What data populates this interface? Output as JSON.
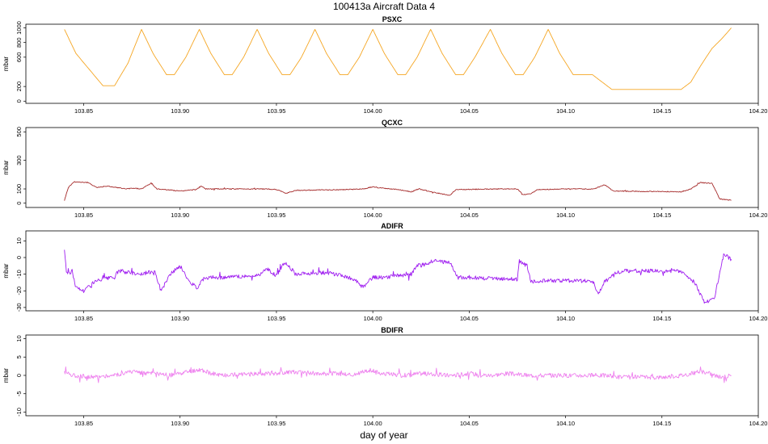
{
  "page_title": "100413a   Aircraft Data 4",
  "xlabel": "day of year",
  "chart_data": [
    {
      "type": "line",
      "title": "PSXC",
      "ylabel": "mbar",
      "color": "#f5a623",
      "xlim": [
        103.82,
        104.2
      ],
      "ylim": [
        -30,
        1050
      ],
      "yticks": [
        0,
        200,
        600,
        800,
        1000
      ],
      "ytick_labels": [
        "0",
        "200",
        "600",
        "800",
        "1000"
      ],
      "xticks": [
        103.85,
        103.9,
        103.95,
        104.0,
        104.05,
        104.1,
        104.15,
        104.2
      ],
      "xtick_labels": [
        "103.85",
        "103.90",
        "103.95",
        "104.00",
        "104.05",
        "104.10",
        "104.15",
        "104.20"
      ],
      "noise": 0,
      "x": [
        103.84,
        103.846,
        103.86,
        103.866,
        103.873,
        103.88,
        103.886,
        103.893,
        103.897,
        103.903,
        103.91,
        103.916,
        103.923,
        103.927,
        103.933,
        103.94,
        103.946,
        103.953,
        103.957,
        103.963,
        103.97,
        103.976,
        103.983,
        103.987,
        103.993,
        104.0,
        104.006,
        104.013,
        104.017,
        104.023,
        104.03,
        104.036,
        104.043,
        104.047,
        104.053,
        104.061,
        104.067,
        104.074,
        104.078,
        104.084,
        104.091,
        104.097,
        104.104,
        104.114,
        104.12,
        104.124,
        104.16,
        104.165,
        104.17,
        104.176,
        104.181,
        104.186
      ],
      "y": [
        980,
        650,
        210,
        210,
        520,
        980,
        650,
        360,
        360,
        600,
        980,
        650,
        360,
        360,
        600,
        980,
        650,
        360,
        360,
        600,
        980,
        650,
        360,
        360,
        600,
        980,
        650,
        360,
        360,
        600,
        980,
        650,
        360,
        360,
        600,
        980,
        650,
        360,
        360,
        600,
        980,
        650,
        360,
        360,
        240,
        160,
        160,
        260,
        480,
        720,
        850,
        1000
      ]
    },
    {
      "type": "line",
      "title": "QCXC",
      "ylabel": "mbar",
      "color": "#a52a2a",
      "xlim": [
        103.82,
        104.2
      ],
      "ylim": [
        -30,
        530
      ],
      "yticks": [
        0,
        100,
        300,
        500
      ],
      "ytick_labels": [
        "0",
        "100",
        "300",
        "500"
      ],
      "xticks": [
        103.85,
        103.9,
        103.95,
        104.0,
        104.05,
        104.1,
        104.15,
        104.2
      ],
      "xtick_labels": [
        "103.85",
        "103.90",
        "103.95",
        "104.00",
        "104.05",
        "104.10",
        "104.15",
        "104.20"
      ],
      "noise": 3,
      "x": [
        103.84,
        103.842,
        103.845,
        103.852,
        103.857,
        103.862,
        103.872,
        103.876,
        103.88,
        103.885,
        103.888,
        103.893,
        103.9,
        103.908,
        103.911,
        103.913,
        103.92,
        103.945,
        103.95,
        103.955,
        103.96,
        103.985,
        103.995,
        104.0,
        104.005,
        104.013,
        104.02,
        104.024,
        104.03,
        104.038,
        104.04,
        104.043,
        104.063,
        104.075,
        104.078,
        104.082,
        104.085,
        104.1,
        104.115,
        104.12,
        104.125,
        104.16,
        104.165,
        104.17,
        104.176,
        104.18,
        104.186
      ],
      "y": [
        20,
        110,
        150,
        145,
        110,
        120,
        100,
        105,
        100,
        140,
        100,
        95,
        85,
        95,
        120,
        100,
        100,
        100,
        95,
        70,
        90,
        95,
        100,
        115,
        105,
        95,
        80,
        100,
        80,
        60,
        55,
        95,
        100,
        100,
        60,
        65,
        95,
        100,
        100,
        130,
        85,
        80,
        100,
        145,
        140,
        30,
        20
      ]
    },
    {
      "type": "line",
      "title": "ADIFR",
      "ylabel": "mbar",
      "color": "#a020f0",
      "xlim": [
        103.82,
        104.2
      ],
      "ylim": [
        -32,
        16
      ],
      "yticks": [
        -30,
        -20,
        -10,
        0,
        10
      ],
      "ytick_labels": [
        "-30",
        "-20",
        "-10",
        "0",
        "10"
      ],
      "xticks": [
        103.85,
        103.9,
        103.95,
        104.0,
        104.05,
        104.1,
        104.15,
        104.2
      ],
      "xtick_labels": [
        "103.85",
        "103.90",
        "103.95",
        "104.00",
        "104.05",
        "104.10",
        "104.15",
        "104.20"
      ],
      "noise": 1.2,
      "x": [
        103.84,
        103.841,
        103.842,
        103.844,
        103.846,
        103.85,
        103.855,
        103.86,
        103.866,
        103.868,
        103.88,
        103.887,
        103.89,
        103.895,
        103.9,
        103.905,
        103.909,
        103.911,
        103.913,
        103.92,
        103.94,
        103.945,
        103.95,
        103.953,
        103.955,
        103.96,
        103.975,
        103.985,
        103.99,
        103.995,
        104.0,
        104.005,
        104.02,
        104.023,
        104.028,
        104.03,
        104.04,
        104.044,
        104.05,
        104.075,
        104.076,
        104.08,
        104.082,
        104.105,
        104.114,
        104.117,
        104.12,
        104.125,
        104.13,
        104.155,
        104.16,
        104.167,
        104.172,
        104.177,
        104.18,
        104.182,
        104.186
      ],
      "y": [
        5,
        -8,
        -10,
        -8,
        -18,
        -20,
        -15,
        -13,
        -12,
        -8,
        -10,
        -8,
        -20,
        -10,
        -5,
        -15,
        -18,
        -14,
        -12,
        -12,
        -11,
        -7,
        -11,
        -5,
        -3,
        -10,
        -9,
        -11,
        -13,
        -18,
        -12,
        -12,
        -10,
        -5,
        -4,
        -2,
        -3,
        -12,
        -12,
        -13,
        -2,
        -5,
        -14,
        -14,
        -14,
        -22,
        -15,
        -10,
        -8,
        -8,
        -8,
        -15,
        -27,
        -25,
        -10,
        2,
        -1
      ]
    },
    {
      "type": "line",
      "title": "BDIFR",
      "ylabel": "mbar",
      "color": "#ee82ee",
      "xlim": [
        103.82,
        104.2
      ],
      "ylim": [
        -11,
        11
      ],
      "yticks": [
        -10,
        -5,
        0,
        5,
        10
      ],
      "ytick_labels": [
        "-10",
        "-5",
        "0",
        "5",
        "10"
      ],
      "xticks": [
        103.85,
        103.9,
        103.95,
        104.0,
        104.05,
        104.1,
        104.15,
        104.2
      ],
      "xtick_labels": [
        "103.85",
        "103.90",
        "103.95",
        "104.00",
        "104.05",
        "104.10",
        "104.15",
        "104.20"
      ],
      "noise": 0.6,
      "x": [
        103.84,
        103.845,
        103.855,
        103.865,
        103.875,
        103.885,
        103.895,
        103.905,
        103.91,
        103.92,
        103.935,
        103.95,
        103.96,
        103.97,
        103.98,
        103.99,
        103.998,
        104.005,
        104.015,
        104.025,
        104.04,
        104.05,
        104.06,
        104.07,
        104.08,
        104.09,
        104.1,
        104.11,
        104.12,
        104.13,
        104.14,
        104.15,
        104.16,
        104.165,
        104.17,
        104.175,
        104.18,
        104.186
      ],
      "y": [
        1,
        0,
        -0.5,
        0,
        1,
        0.5,
        0,
        1,
        1.5,
        0,
        0.5,
        0.5,
        1,
        0.5,
        0.5,
        0,
        1.5,
        0.5,
        0,
        0.5,
        0,
        0.5,
        0,
        0.5,
        0,
        0,
        0,
        0,
        0,
        -0.5,
        -0.5,
        -0.5,
        0,
        0.5,
        1,
        0.5,
        -0.5,
        0
      ]
    }
  ]
}
